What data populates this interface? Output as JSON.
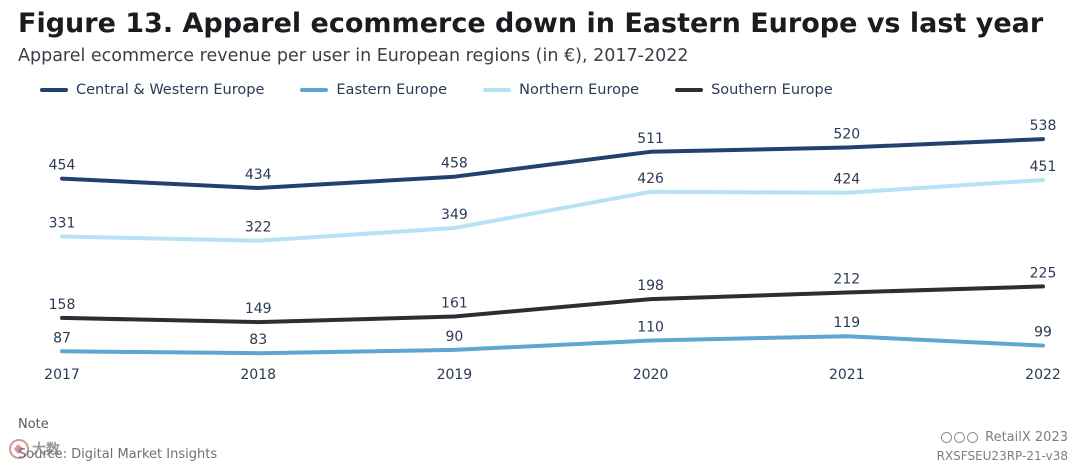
{
  "title": "Figure 13. Apparel ecommerce down in Eastern Europe vs last year",
  "subtitle": "Apparel ecommerce revenue per user in European regions (in €), 2017-2022",
  "note": "Note",
  "source": "Source: Digital Market Insights",
  "credit": "RetailX 2023",
  "reference": "RXSFSEU23RP-21-v38",
  "watermark_text": "大数跨境",
  "chart_data": {
    "type": "line",
    "title": "Figure 13. Apparel ecommerce down in Eastern Europe vs last year",
    "subtitle": "Apparel ecommerce revenue per user in European regions (in €), 2017-2022",
    "xlabel": "",
    "ylabel": "",
    "grid": false,
    "legend_position": "top-left",
    "categories": [
      "2017",
      "2018",
      "2019",
      "2020",
      "2021",
      "2022"
    ],
    "ylim": [
      60,
      570
    ],
    "series": [
      {
        "name": "Central & Western Europe",
        "color": "#24406e",
        "values": [
          454,
          434,
          458,
          511,
          520,
          538
        ]
      },
      {
        "name": "Eastern Europe",
        "color": "#5ea6d0",
        "values": [
          87,
          83,
          90,
          110,
          119,
          99
        ]
      },
      {
        "name": "Northern Europe",
        "color": "#b5e3f4",
        "values": [
          331,
          322,
          349,
          426,
          424,
          451
        ]
      },
      {
        "name": "Southern Europe",
        "color": "#2e2e30",
        "values": [
          158,
          149,
          161,
          198,
          212,
          225
        ]
      }
    ]
  }
}
